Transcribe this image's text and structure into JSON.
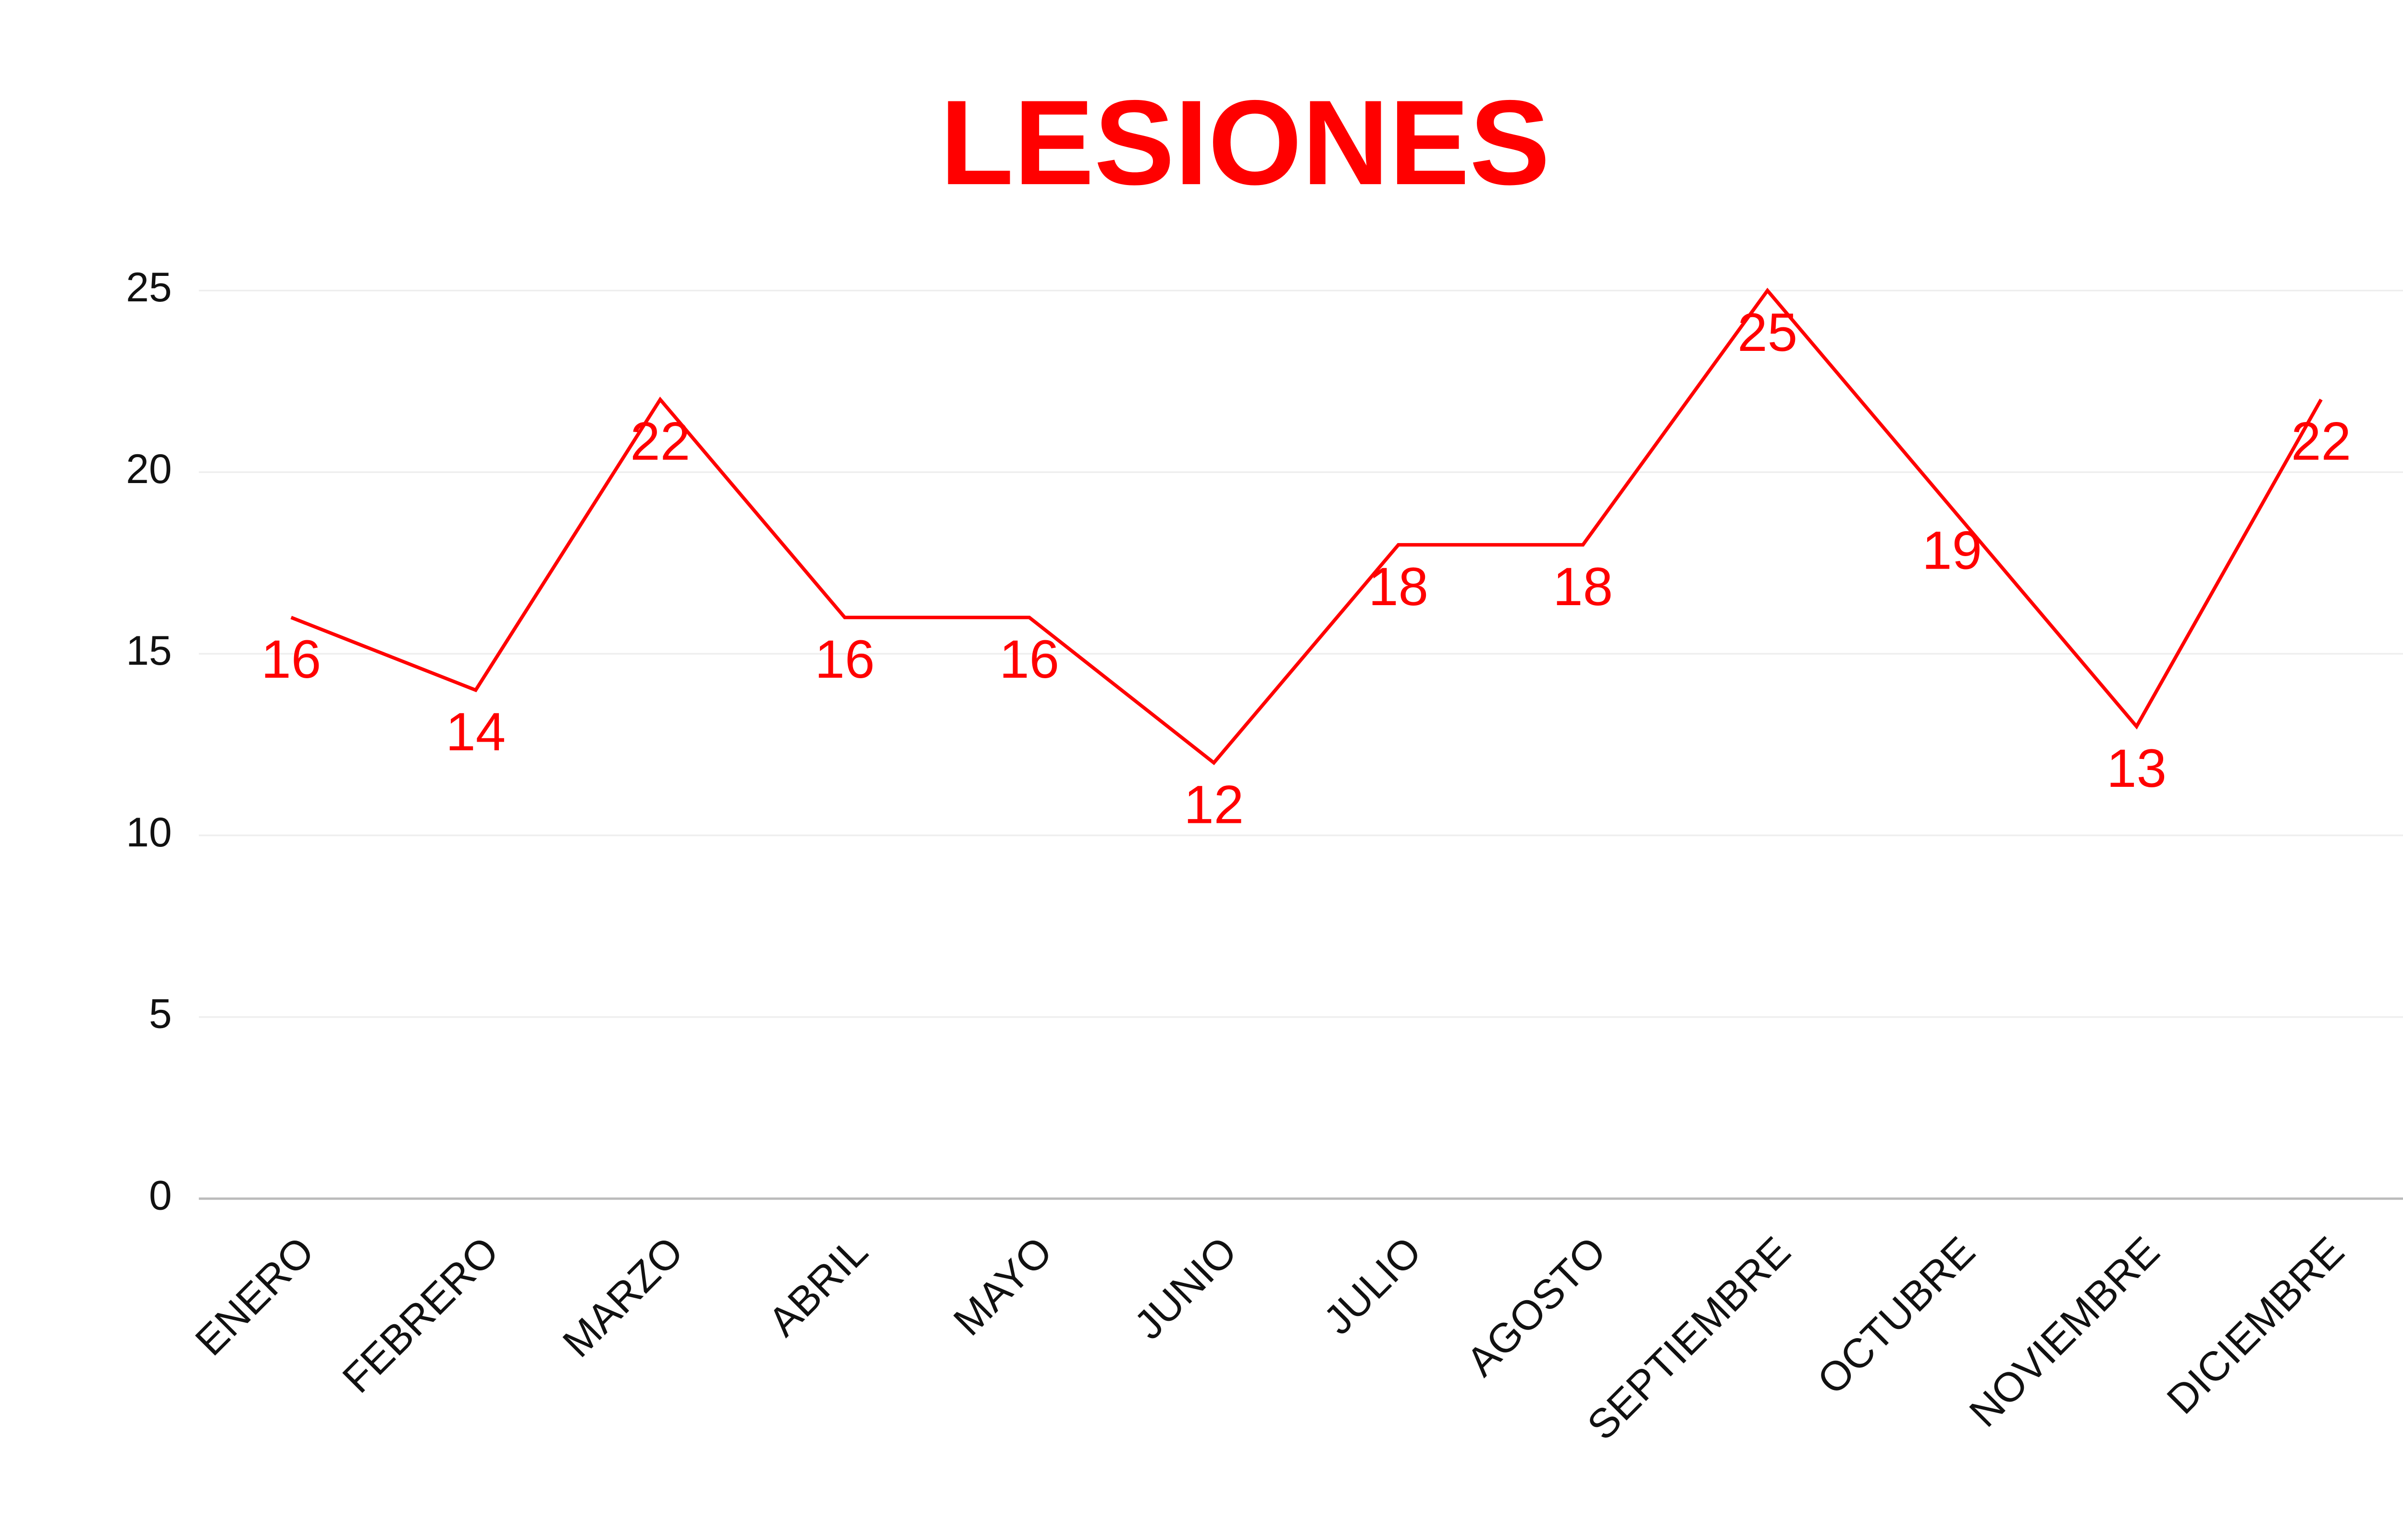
{
  "chart_data": {
    "type": "line",
    "title": "LESIONES",
    "categories": [
      "ENERO",
      "FEBRERO",
      "MARZO",
      "ABRIL",
      "MAYO",
      "JUNIO",
      "JULIO",
      "AGOSTO",
      "SEPTIEMBRE",
      "OCTUBRE",
      "NOVIEMBRE",
      "DICIEMBRE"
    ],
    "values": [
      16,
      14,
      22,
      16,
      16,
      12,
      18,
      18,
      25,
      19,
      13,
      22
    ],
    "color": "#ff0000",
    "ylim": [
      0,
      25
    ],
    "yticks": [
      0,
      5,
      10,
      15,
      20,
      25
    ],
    "grid": true
  }
}
